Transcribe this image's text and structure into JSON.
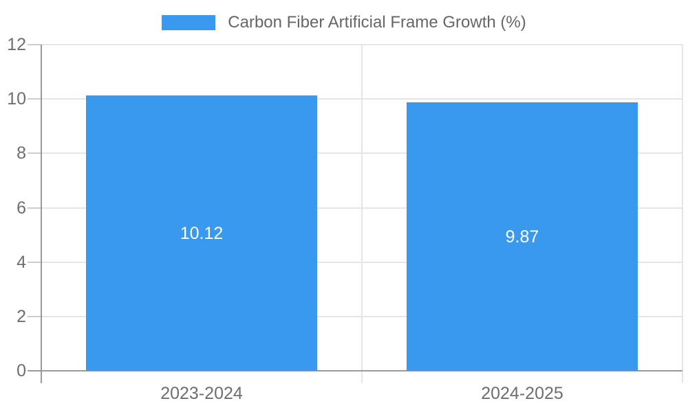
{
  "legend": {
    "label": "Carbon Fiber Artificial Frame Growth (%)"
  },
  "chart_data": {
    "type": "bar",
    "title": "Carbon Fiber Artificial Frame Growth (%)",
    "categories": [
      "2023-2024",
      "2024-2025"
    ],
    "values": [
      10.12,
      9.87
    ],
    "value_labels": [
      "10.12",
      "9.87"
    ],
    "xlabel": "",
    "ylabel": "",
    "ylim": [
      0,
      12
    ],
    "yticks": [
      0,
      2,
      4,
      6,
      8,
      10,
      12
    ],
    "ytick_labels": [
      "0",
      "2",
      "4",
      "6",
      "8",
      "10",
      "12"
    ],
    "grid": true,
    "legend_position": "top",
    "colors": {
      "bar": "#3899ee",
      "grid": "#e5e5e5",
      "tick_mark": "#cccccc",
      "axis": "#9a9a9a",
      "tick_label": "#6e6e6e",
      "legend_text": "#666666",
      "value_label": "#ffffff",
      "background": "#ffffff"
    }
  }
}
